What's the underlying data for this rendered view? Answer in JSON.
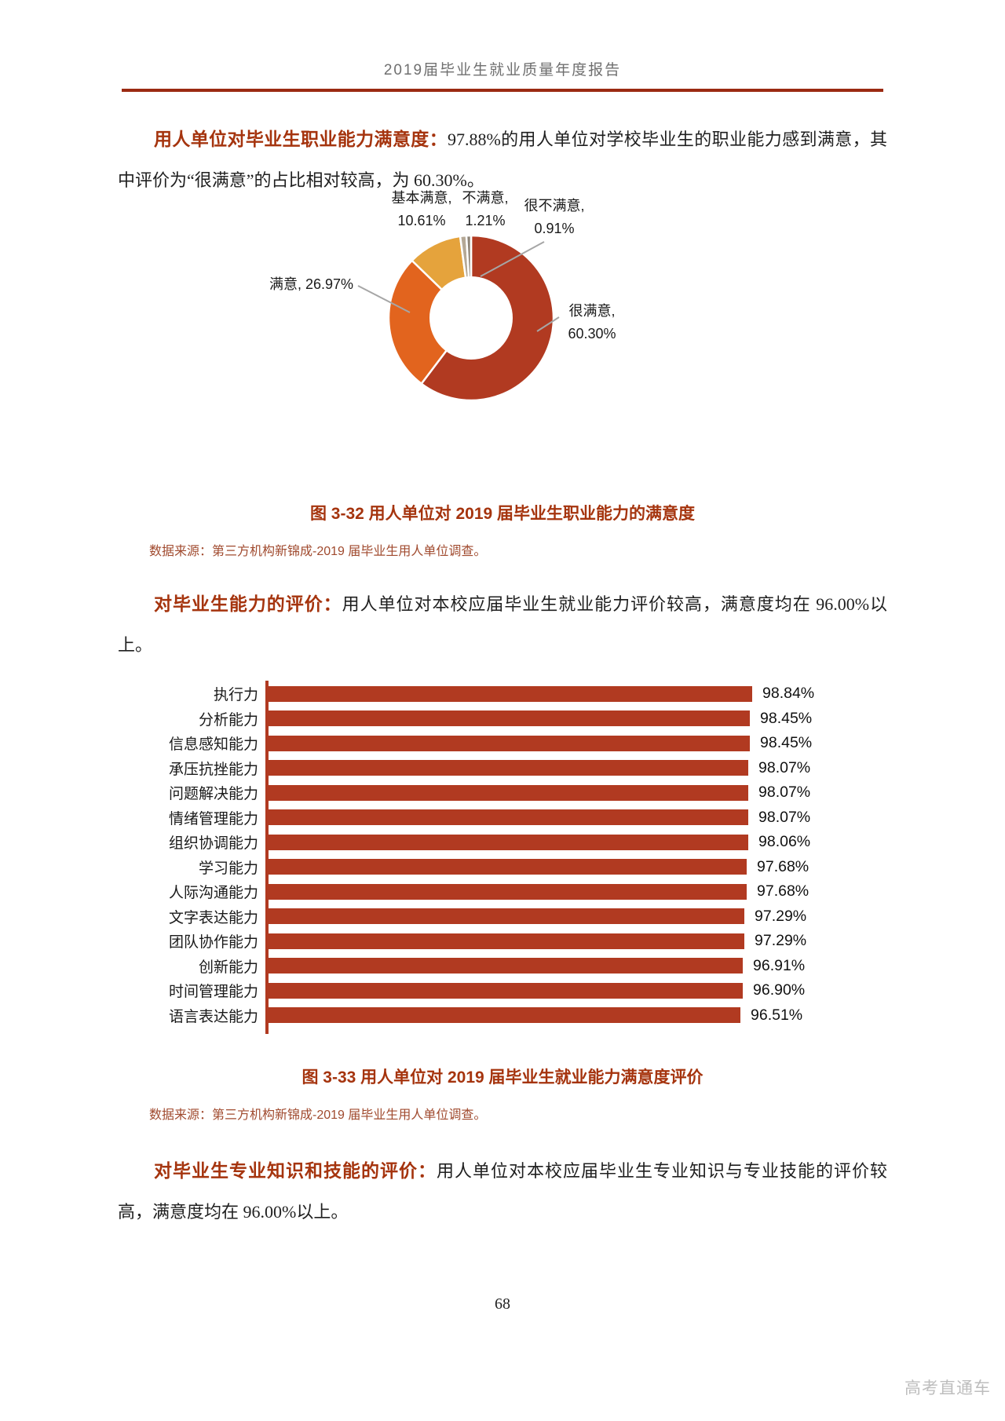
{
  "page": {
    "header_title": "2019届毕业生就业质量年度报告",
    "page_number": "68",
    "watermark": "高考直通车"
  },
  "paragraphs": {
    "p1_lead": "用人单位对毕业生职业能力满意度：",
    "p1_body": "97.88%的用人单位对学校毕业生的职业能力感到满意，其中评价为“很满意”的占比相对较高，为 60.30%。",
    "p2_lead": "对毕业生能力的评价：",
    "p2_body": "用人单位对本校应届毕业生就业能力评价较高，满意度均在 96.00%以上。",
    "p3_lead": "对毕业生专业知识和技能的评价：",
    "p3_body": "用人单位对本校应届毕业生专业知识与专业技能的评价较高，满意度均在 96.00%以上。"
  },
  "figure32": {
    "caption": "图 3-32  用人单位对 2019 届毕业生职业能力的满意度",
    "source": "数据来源：第三方机构新锦成-2019 届毕业生用人单位调查。"
  },
  "figure33": {
    "caption": "图 3-33  用人单位对 2019 届毕业生就业能力满意度评价",
    "source": "数据来源：第三方机构新锦成-2019 届毕业生用人单位调查。"
  },
  "colors": {
    "accent_dark_red": "#a5340e",
    "header_rule": "#9b2a12",
    "source_text": "#a04a2e",
    "leader_line": "#a6a6a6"
  },
  "chart_data": [
    {
      "type": "pie",
      "subtype": "donut",
      "title": "用人单位对 2019 届毕业生职业能力的满意度",
      "labels": [
        "很满意",
        "满意",
        "基本满意",
        "不满意",
        "很不满意"
      ],
      "values": [
        60.3,
        26.97,
        10.61,
        1.21,
        0.91
      ],
      "percent_labels": [
        "60.30%",
        "26.97%",
        "10.61%",
        "1.21%",
        "0.91%"
      ],
      "colors": [
        "#b13a21",
        "#e2641e",
        "#e5a33c",
        "#b5a896",
        "#8e8477"
      ],
      "legend_position": "none",
      "callouts": [
        {
          "name": "很满意",
          "line1": "很满意,",
          "line2": "60.30%"
        },
        {
          "name": "满意",
          "line1": "满意, 26.97%",
          "line2": ""
        },
        {
          "name": "基本满意",
          "line1": "基本满意,",
          "line2": "10.61%"
        },
        {
          "name": "不满意",
          "line1": "不满意,",
          "line2": "1.21%"
        },
        {
          "name": "很不满意",
          "line1": "很不满意,",
          "line2": "0.91%"
        }
      ]
    },
    {
      "type": "bar",
      "orientation": "horizontal",
      "title": "用人单位对 2019 届毕业生就业能力满意度评价",
      "categories": [
        "执行力",
        "分析能力",
        "信息感知能力",
        "承压抗挫能力",
        "问题解决能力",
        "情绪管理能力",
        "组织协调能力",
        "学习能力",
        "人际沟通能力",
        "文字表达能力",
        "团队协作能力",
        "创新能力",
        "时间管理能力",
        "语言表达能力"
      ],
      "values": [
        98.84,
        98.45,
        98.45,
        98.07,
        98.07,
        98.07,
        98.06,
        97.68,
        97.68,
        97.29,
        97.29,
        96.91,
        96.9,
        96.51
      ],
      "value_labels": [
        "98.84%",
        "98.45%",
        "98.45%",
        "98.07%",
        "98.07%",
        "98.07%",
        "98.06%",
        "97.68%",
        "97.68%",
        "97.29%",
        "97.29%",
        "96.91%",
        "96.90%",
        "96.51%"
      ],
      "bar_color": "#b13a21",
      "xlim": [
        0,
        100
      ],
      "gridlines": false,
      "ylabel": "",
      "xlabel": ""
    }
  ]
}
